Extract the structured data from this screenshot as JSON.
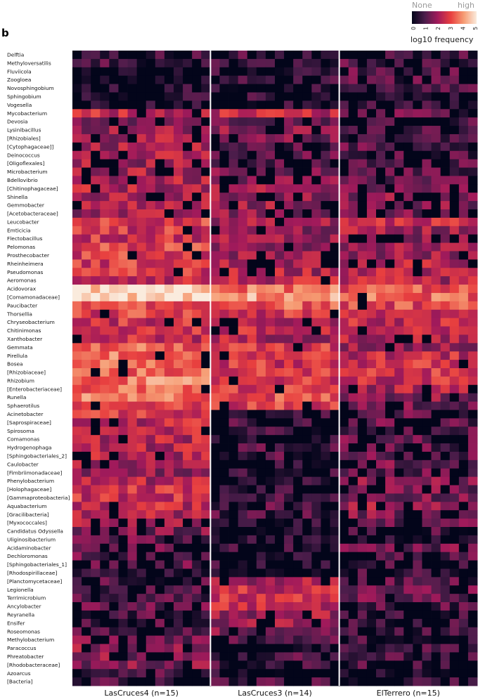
{
  "panel_label": "b",
  "chart_data": {
    "type": "heatmap",
    "title": "",
    "xlabel": "",
    "ylabel": "",
    "colorbar": {
      "title": "log10 frequency",
      "min_label": "None",
      "max_label": "high",
      "ticks": [
        "0",
        "1",
        "2",
        "3",
        "4",
        "5"
      ],
      "range": [
        0,
        5
      ],
      "colormap": "rocket",
      "colors": [
        "#03051a",
        "#4c1d4b",
        "#a11a5b",
        "#e83f3f",
        "#f69c73",
        "#faebdd"
      ]
    },
    "groups": [
      {
        "name": "LasCruces4 (n=15)",
        "n": 15,
        "divider_color": "#ffffff"
      },
      {
        "name": "LasCruces3 (n=14)",
        "n": 14,
        "divider_color": "#ffffff"
      },
      {
        "name": "ElTerrero (n=15)",
        "n": 15
      }
    ],
    "rows": [
      {
        "name": "Delftia",
        "g": [
          0.8,
          0.8,
          0.9
        ]
      },
      {
        "name": "Methyloversatilis",
        "g": [
          0.8,
          0.9,
          1.0
        ]
      },
      {
        "name": "Fluviicola",
        "g": [
          0.3,
          0.6,
          1.2
        ]
      },
      {
        "name": "Zoogloea",
        "g": [
          0.3,
          0.6,
          1.0
        ]
      },
      {
        "name": "Novosphingobium",
        "g": [
          0.9,
          0.5,
          0.9
        ]
      },
      {
        "name": "Sphingobium",
        "g": [
          0.8,
          0.6,
          0.7
        ]
      },
      {
        "name": "Vogesella",
        "g": [
          0.4,
          0.5,
          0.5
        ]
      },
      {
        "name": "Mycobacterium",
        "g": [
          2.4,
          2.4,
          1.2
        ]
      },
      {
        "name": "Devosia",
        "g": [
          1.8,
          1.6,
          1.0
        ]
      },
      {
        "name": "Lysinibacillus",
        "g": [
          1.9,
          1.7,
          1.3
        ]
      },
      {
        "name": "[Rhizobiales]",
        "g": [
          2.0,
          1.5,
          1.1
        ]
      },
      {
        "name": "[Cytophagaceae]]",
        "g": [
          2.1,
          1.0,
          1.2
        ]
      },
      {
        "name": "Deinococcus",
        "g": [
          2.1,
          1.1,
          1.0
        ]
      },
      {
        "name": "[Oligoflexales]",
        "g": [
          2.0,
          1.2,
          1.1
        ]
      },
      {
        "name": "Microbacterium",
        "g": [
          2.2,
          1.5,
          1.0
        ]
      },
      {
        "name": "Bdellovibrio",
        "g": [
          2.1,
          1.7,
          1.3
        ]
      },
      {
        "name": "[Chitinophagaceae]",
        "g": [
          2.2,
          1.8,
          1.6
        ]
      },
      {
        "name": "Shinella",
        "g": [
          2.0,
          1.8,
          1.8
        ]
      },
      {
        "name": "Gemmobacter",
        "g": [
          2.2,
          1.9,
          1.7
        ]
      },
      {
        "name": "[Acetobacteraceae]",
        "g": [
          2.0,
          1.7,
          1.5
        ]
      },
      {
        "name": "Leucobacter",
        "g": [
          2.9,
          1.9,
          2.6
        ]
      },
      {
        "name": "Emticicia",
        "g": [
          2.7,
          1.8,
          2.0
        ]
      },
      {
        "name": "Flectobacillus",
        "g": [
          2.6,
          2.0,
          1.8
        ]
      },
      {
        "name": "Pelomonas",
        "g": [
          2.9,
          1.9,
          2.1
        ]
      },
      {
        "name": "Prosthecobacter",
        "g": [
          2.8,
          2.0,
          1.9
        ]
      },
      {
        "name": "Rheinheimera",
        "g": [
          2.8,
          2.1,
          2.2
        ]
      },
      {
        "name": "Pseudomonas",
        "g": [
          2.7,
          2.2,
          2.3
        ]
      },
      {
        "name": "Aeromonas",
        "g": [
          2.5,
          2.3,
          2.2
        ]
      },
      {
        "name": "Acidovorax",
        "g": [
          4.7,
          3.5,
          3.2
        ]
      },
      {
        "name": "[Comamonadaceae]",
        "g": [
          4.8,
          4.0,
          3.4
        ]
      },
      {
        "name": "Paucibacter",
        "g": [
          2.8,
          3.3,
          3.0
        ]
      },
      {
        "name": "Thorsellia",
        "g": [
          2.9,
          2.6,
          2.5
        ]
      },
      {
        "name": "Chryseobacterium",
        "g": [
          2.6,
          2.4,
          2.4
        ]
      },
      {
        "name": "Chitinimonas",
        "g": [
          2.7,
          2.4,
          2.2
        ]
      },
      {
        "name": "Xanthobacter",
        "g": [
          2.5,
          2.2,
          2.2
        ]
      },
      {
        "name": "Gemmata",
        "g": [
          3.3,
          2.7,
          1.9
        ]
      },
      {
        "name": "Pirellula",
        "g": [
          3.5,
          2.8,
          2.4
        ]
      },
      {
        "name": "Bosea",
        "g": [
          3.5,
          2.7,
          2.6
        ]
      },
      {
        "name": "[Rhizobiaceae]",
        "g": [
          3.4,
          2.7,
          2.6
        ]
      },
      {
        "name": "Rhizobium",
        "g": [
          3.6,
          2.8,
          2.5
        ]
      },
      {
        "name": "[Enterobacteriaceae]",
        "g": [
          3.3,
          2.8,
          2.1
        ]
      },
      {
        "name": "Runella",
        "g": [
          3.5,
          3.1,
          1.7
        ]
      },
      {
        "name": "Sphaerotilus",
        "g": [
          3.1,
          2.8,
          1.4
        ]
      },
      {
        "name": "Acinetobacter",
        "g": [
          2.9,
          1.2,
          1.3
        ]
      },
      {
        "name": "[Saprospiraceae]",
        "g": [
          2.4,
          0.8,
          1.2
        ]
      },
      {
        "name": "Spirosoma",
        "g": [
          2.4,
          0.7,
          1.2
        ]
      },
      {
        "name": "Comamonas",
        "g": [
          2.3,
          0.8,
          1.3
        ]
      },
      {
        "name": "Hydrogenophaga",
        "g": [
          2.3,
          0.9,
          1.2
        ]
      },
      {
        "name": "[Sphingobacteriales_2]",
        "g": [
          2.2,
          0.9,
          1.3
        ]
      },
      {
        "name": "Caulobacter",
        "g": [
          2.1,
          0.6,
          1.4
        ]
      },
      {
        "name": "[Fimbriimonadaceae]",
        "g": [
          1.9,
          0.6,
          1.2
        ]
      },
      {
        "name": "Phenylobacterium",
        "g": [
          2.2,
          0.6,
          1.6
        ]
      },
      {
        "name": "[Holophagaceae]",
        "g": [
          2.6,
          0.7,
          1.5
        ]
      },
      {
        "name": "[Gammaproteobacteria]",
        "g": [
          2.6,
          0.9,
          1.6
        ]
      },
      {
        "name": "Aquabacterium",
        "g": [
          2.4,
          1.0,
          1.9
        ]
      },
      {
        "name": "[Gracilibacteria]",
        "g": [
          2.2,
          0.9,
          1.6
        ]
      },
      {
        "name": "[Myxococcales]",
        "g": [
          2.0,
          0.8,
          1.4
        ]
      },
      {
        "name": "Candidatus Odyssella",
        "g": [
          1.6,
          0.6,
          0.8
        ]
      },
      {
        "name": "Uliginosibacterium",
        "g": [
          1.4,
          0.6,
          0.9
        ]
      },
      {
        "name": "Acidaminobacter",
        "g": [
          1.3,
          0.6,
          1.4
        ]
      },
      {
        "name": "Dechloromonas",
        "g": [
          1.3,
          0.7,
          1.1
        ]
      },
      {
        "name": "[Sphingobacteriales_1]",
        "g": [
          1.2,
          0.6,
          0.7
        ]
      },
      {
        "name": "[Rhodospirillaceae]",
        "g": [
          0.9,
          0.6,
          1.0
        ]
      },
      {
        "name": "[Planctomycetaceae]",
        "g": [
          0.9,
          2.1,
          1.0
        ]
      },
      {
        "name": "Legionella",
        "g": [
          0.9,
          2.6,
          1.4
        ]
      },
      {
        "name": "Terrimicrobium",
        "g": [
          1.0,
          2.6,
          1.3
        ]
      },
      {
        "name": "Ancylobacter",
        "g": [
          1.2,
          2.4,
          1.0
        ]
      },
      {
        "name": "Reyranella",
        "g": [
          1.0,
          2.0,
          0.8
        ]
      },
      {
        "name": "Ensifer",
        "g": [
          1.1,
          1.8,
          0.8
        ]
      },
      {
        "name": "Roseomonas",
        "g": [
          1.2,
          1.6,
          0.8
        ]
      },
      {
        "name": "Methylobacterium",
        "g": [
          1.5,
          1.2,
          0.8
        ]
      },
      {
        "name": "Paracoccus",
        "g": [
          1.8,
          1.0,
          0.9
        ]
      },
      {
        "name": "Phreatobacter",
        "g": [
          1.7,
          1.0,
          0.9
        ]
      },
      {
        "name": "[Rhodobacteraceae]",
        "g": [
          1.6,
          0.9,
          0.8
        ]
      },
      {
        "name": "Azoarcus",
        "g": [
          1.0,
          0.8,
          0.6
        ]
      },
      {
        "name": "[Bacteria]",
        "g": [
          0.9,
          0.9,
          0.7
        ]
      }
    ]
  }
}
